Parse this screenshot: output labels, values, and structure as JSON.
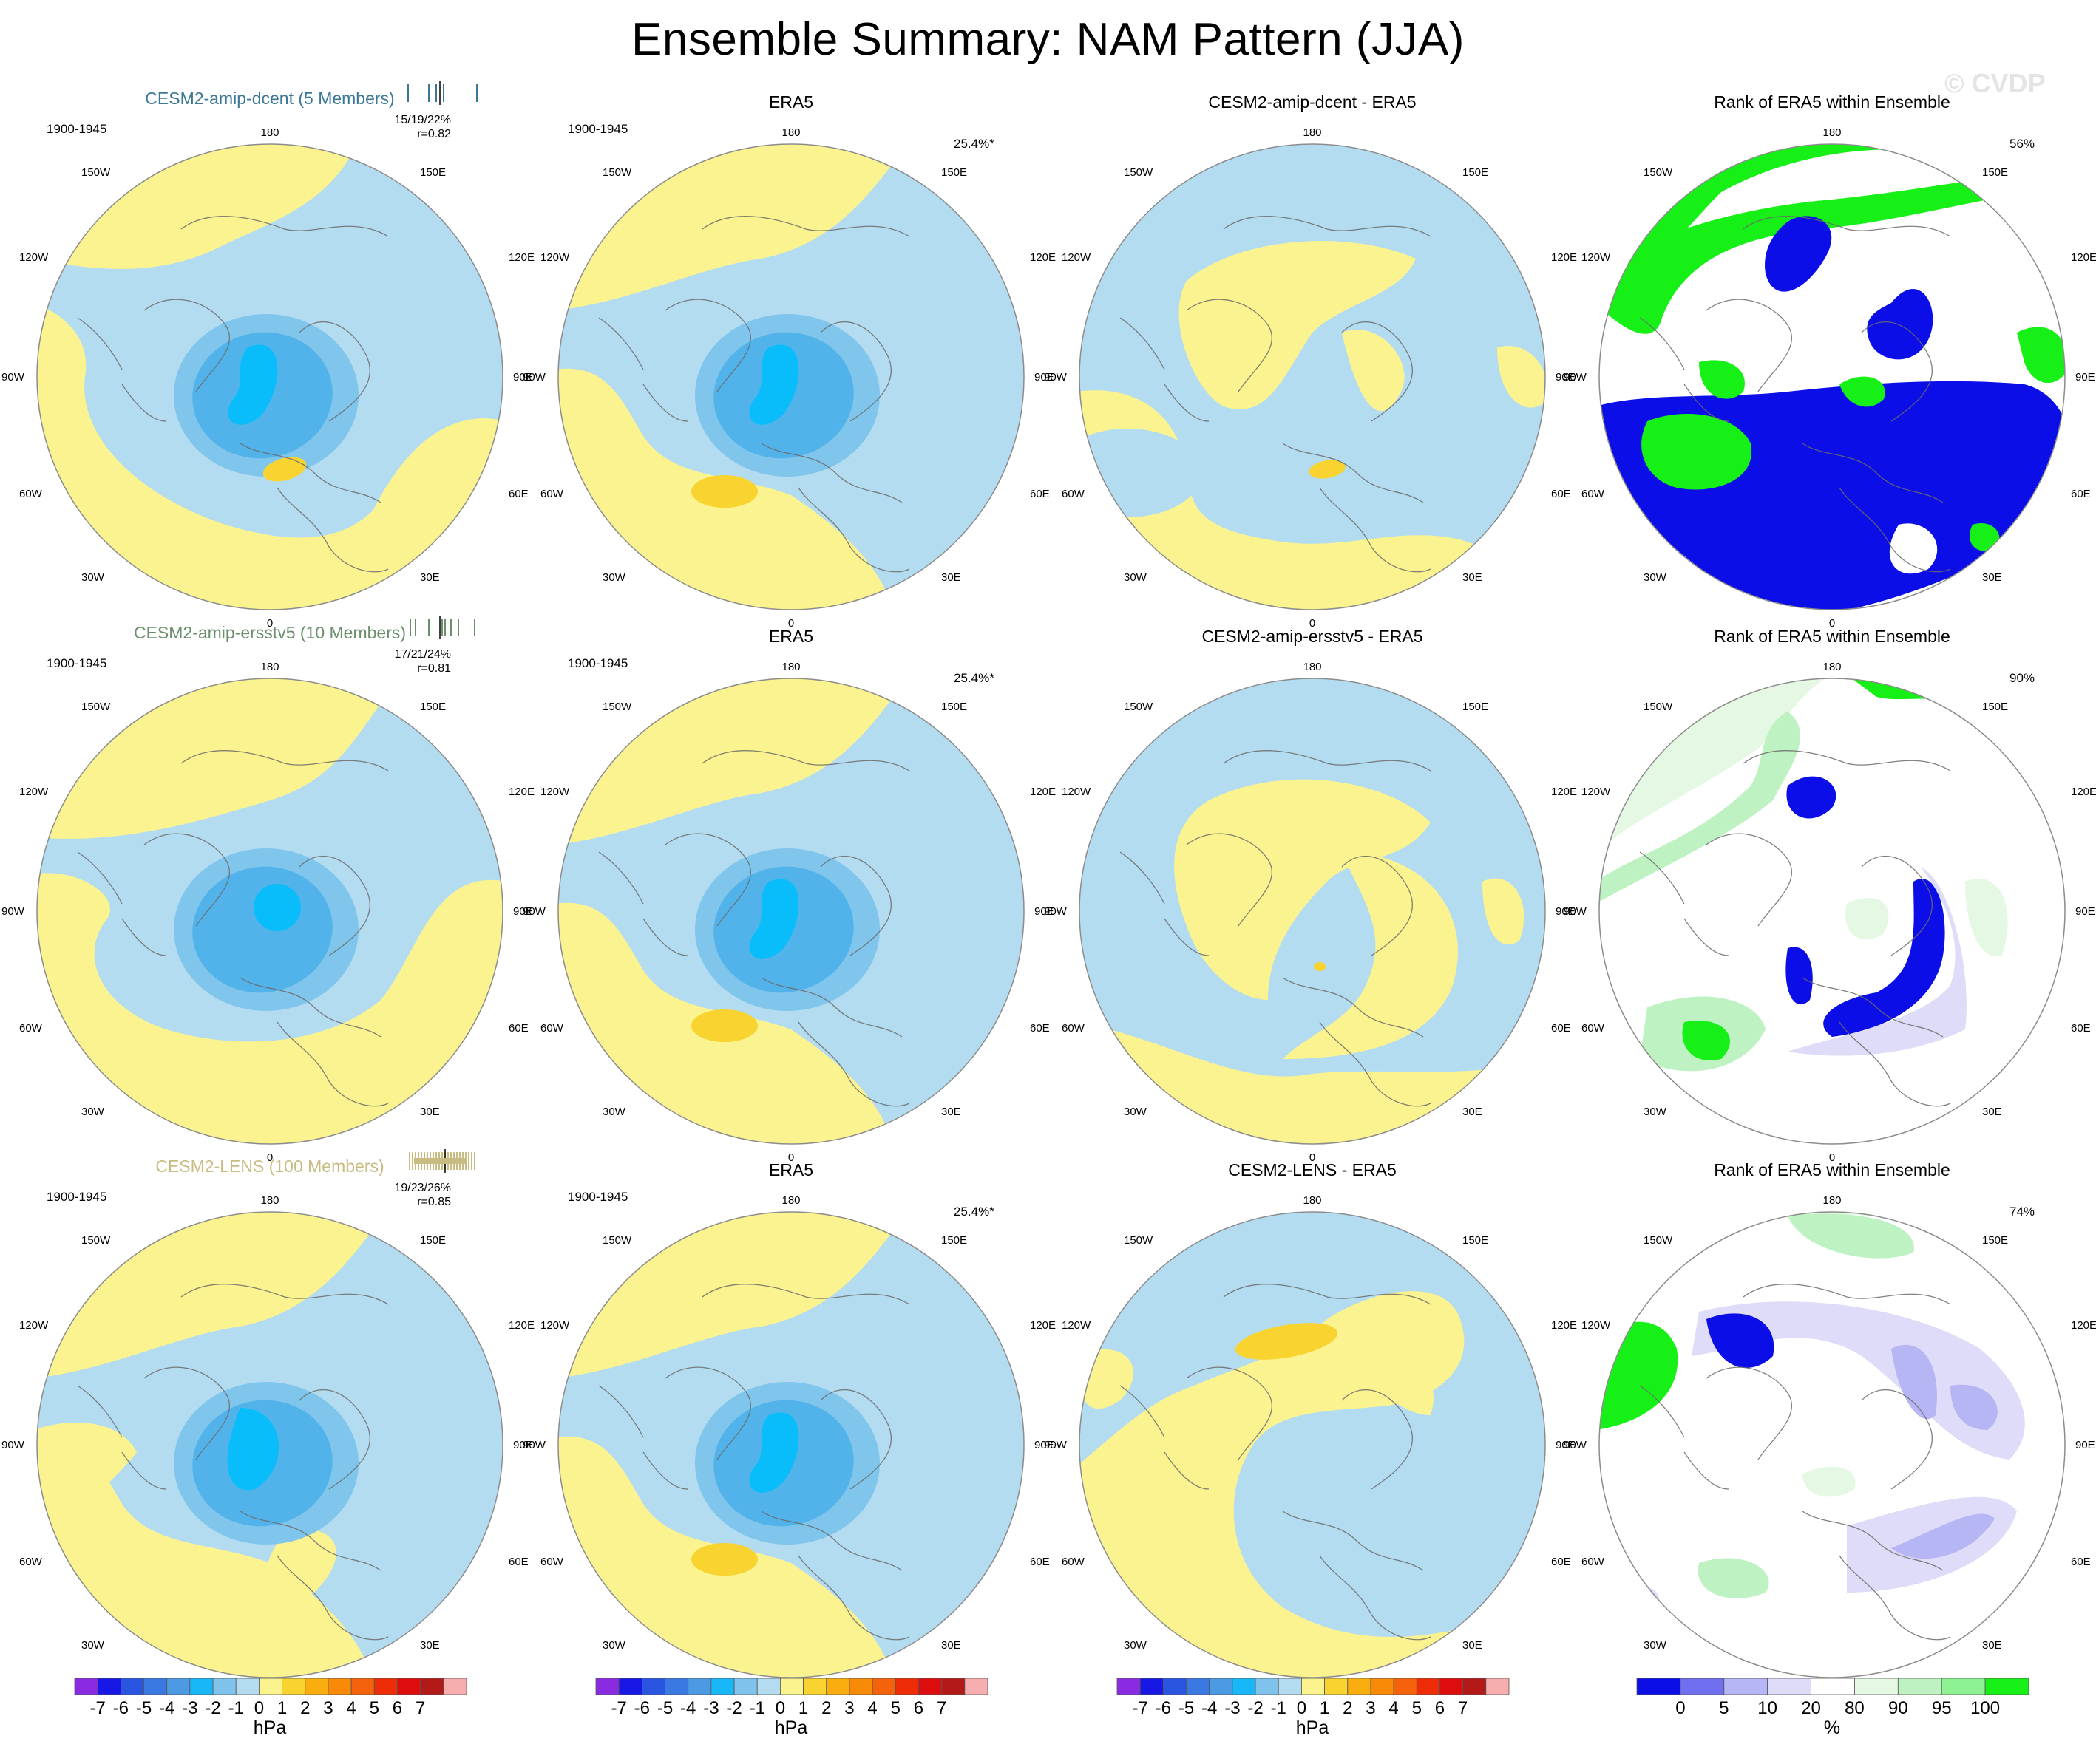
{
  "title": "Ensemble Summary: NAM Pattern (JJA)",
  "watermark": "© CVDP",
  "colors": {
    "pos1": "#fbf38f",
    "pos2": "#f9d330",
    "neg1": "#b3dcf1",
    "neg2": "#80c5ec",
    "neg3": "#52b3eb",
    "neg4": "#08bdfa",
    "rank_blue": "#0b0ee6",
    "rank_green": "#16f017",
    "rank_light_green": "#bff2c2",
    "rank_pale_green": "#e4f8e4",
    "rank_light_blue": "#b7b6f5",
    "rank_pale_blue": "#dedcf8",
    "model_1": "#3c7895",
    "model_2": "#6b8f6b",
    "model_3": "#c9bc83"
  },
  "lon_labels": {
    "top": "180",
    "bottom": "0",
    "left": "90W",
    "right": "90E",
    "ul1": "150W",
    "ur1": "150E",
    "ul2": "120W",
    "ur2": "120E",
    "ll1": "60W",
    "lr1": "60E",
    "ll2": "30W",
    "lr2": "30E"
  },
  "rows": [
    {
      "model_title": "CESM2-amip-dcent (5 Members)",
      "model_color_key": "model_1",
      "period": "1900-1945",
      "stats": "15/19/22%",
      "r": "r=0.82",
      "obs_title": "ERA5",
      "obs_period": "1900-1945",
      "obs_pct": "25.4%*",
      "diff_title": "CESM2-amip-dcent - ERA5",
      "rank_title": "Rank of ERA5 within Ensemble",
      "rank_pct": "56%"
    },
    {
      "model_title": "CESM2-amip-ersstv5 (10 Members)",
      "model_color_key": "model_2",
      "period": "1900-1945",
      "stats": "17/21/24%",
      "r": "r=0.81",
      "obs_title": "ERA5",
      "obs_period": "1900-1945",
      "obs_pct": "25.4%*",
      "diff_title": "CESM2-amip-ersstv5 - ERA5",
      "rank_title": "Rank of ERA5 within Ensemble",
      "rank_pct": "90%"
    },
    {
      "model_title": "CESM2-LENS (100 Members)",
      "model_color_key": "model_3",
      "period": "1900-1945",
      "stats": "19/23/26%",
      "r": "r=0.85",
      "obs_title": "ERA5",
      "obs_period": "1900-1945",
      "obs_pct": "25.4%*",
      "diff_title": "CESM2-LENS - ERA5",
      "rank_title": "Rank of ERA5 within Ensemble",
      "rank_pct": "74%"
    }
  ],
  "colorbar_hpa": {
    "colors": [
      "#8a2be2",
      "#1717e6",
      "#2a55e0",
      "#3a78e2",
      "#4d9ae4",
      "#18b8f8",
      "#7fc3ec",
      "#b4dcf1",
      "#fbf38e",
      "#f9d330",
      "#f9ad0e",
      "#f98a08",
      "#f4620b",
      "#ee2c08",
      "#dd0d0d",
      "#b31919",
      "#f6aeae"
    ],
    "labels": [
      "-7",
      "-6",
      "-5",
      "-4",
      "-3",
      "-2",
      "-1",
      "0",
      "1",
      "2",
      "3",
      "4",
      "5",
      "6",
      "7"
    ],
    "unit": "hPa"
  },
  "colorbar_rank": {
    "colors": [
      "#0b0ee6",
      "#6f6ff0",
      "#b6b5f5",
      "#dedcf8",
      "#ffffff",
      "#e4f8e4",
      "#bff2c2",
      "#8ef194",
      "#16f017"
    ],
    "labels": [
      "0",
      "5",
      "10",
      "20",
      "80",
      "90",
      "95",
      "100"
    ],
    "unit": "%"
  }
}
